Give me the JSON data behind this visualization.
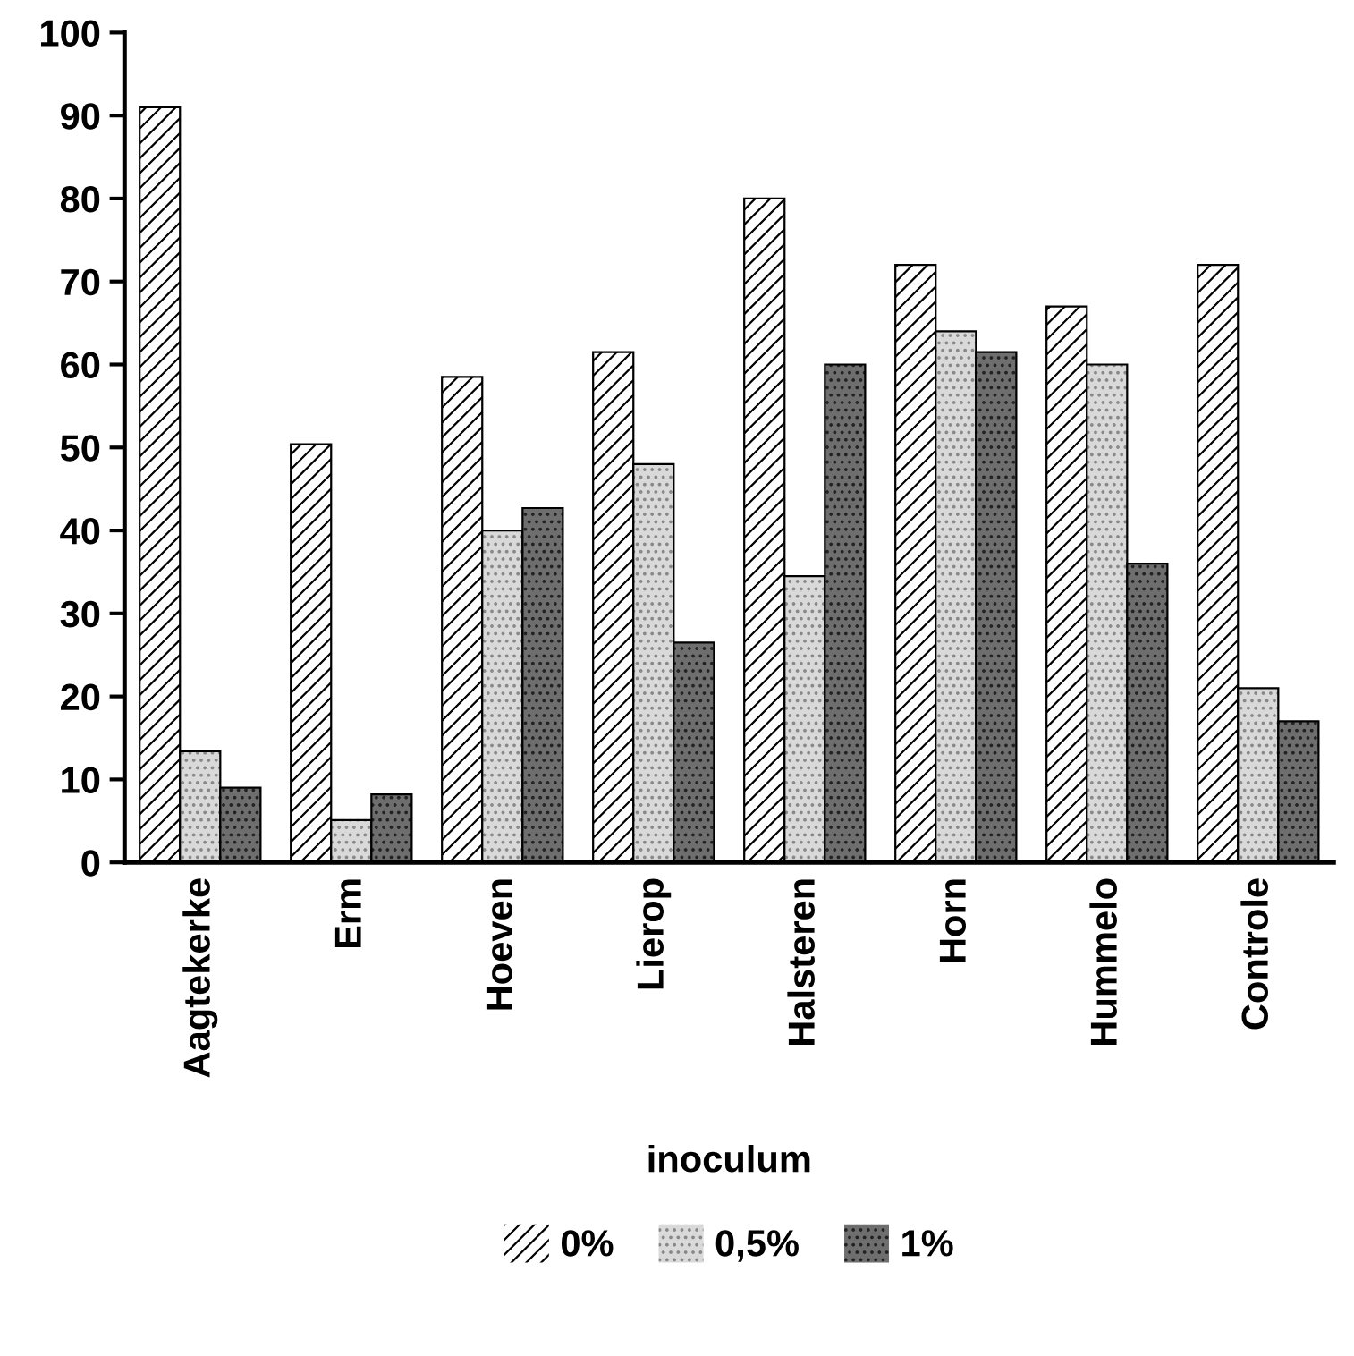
{
  "chart_data": {
    "type": "bar",
    "categories": [
      "Aagtekerke",
      "Erm",
      "Hoeven",
      "Lierop",
      "Halsteren",
      "Horn",
      "Hummelo",
      "Controle"
    ],
    "series": [
      {
        "name": "0%",
        "color": "#ffffff",
        "values": [
          91,
          50.4,
          58.5,
          61.5,
          80,
          72,
          67,
          72
        ]
      },
      {
        "name": "0,5%",
        "color": "#d9d9d9",
        "values": [
          13.4,
          5.1,
          40,
          48,
          34.5,
          64,
          60,
          21
        ]
      },
      {
        "name": "1%",
        "color": "#6e6e6e",
        "values": [
          9,
          8.2,
          42.7,
          26.5,
          60,
          61.5,
          36,
          17
        ]
      }
    ],
    "legend_title": "inoculum",
    "legend": "bottom",
    "ylim": [
      0,
      100
    ],
    "yticks": [
      0,
      10,
      20,
      30,
      40,
      50,
      60,
      70,
      80,
      90,
      100
    ],
    "grid": false
  }
}
